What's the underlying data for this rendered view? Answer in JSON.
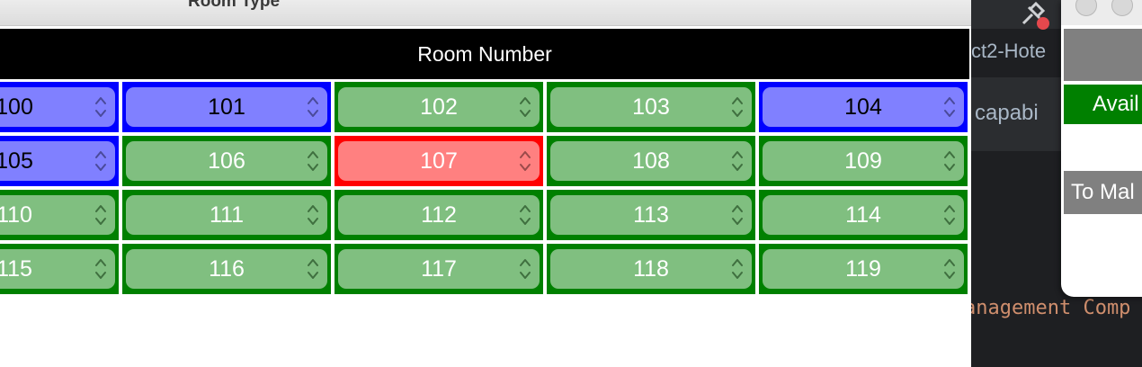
{
  "window": {
    "title": "Room Type"
  },
  "header": {
    "label": "Room Number"
  },
  "rooms": [
    {
      "label": "100",
      "status": "blue"
    },
    {
      "label": "101",
      "status": "blue"
    },
    {
      "label": "102",
      "status": "green"
    },
    {
      "label": "103",
      "status": "green"
    },
    {
      "label": "104",
      "status": "blue"
    },
    {
      "label": "105",
      "status": "blue"
    },
    {
      "label": "106",
      "status": "green"
    },
    {
      "label": "107",
      "status": "red"
    },
    {
      "label": "108",
      "status": "green"
    },
    {
      "label": "109",
      "status": "green"
    },
    {
      "label": "110",
      "status": "green"
    },
    {
      "label": "111",
      "status": "green"
    },
    {
      "label": "112",
      "status": "green"
    },
    {
      "label": "113",
      "status": "green"
    },
    {
      "label": "114",
      "status": "green"
    },
    {
      "label": "115",
      "status": "green"
    },
    {
      "label": "116",
      "status": "green"
    },
    {
      "label": "117",
      "status": "green"
    },
    {
      "label": "118",
      "status": "green"
    },
    {
      "label": "119",
      "status": "green"
    }
  ],
  "colors": {
    "green": "#008000",
    "blue": "#0000ff",
    "red": "#ff0000",
    "header_bg": "#000000"
  },
  "ide": {
    "tab_text": "ct2-Hote",
    "capabilities_text": "capabi",
    "code_text": "anagement Comp"
  },
  "dialog": {
    "available_label": "Avail",
    "to_make_label": "To Mal"
  }
}
